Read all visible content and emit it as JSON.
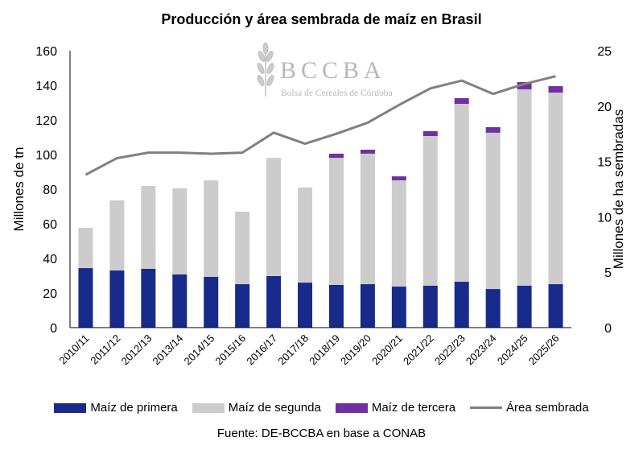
{
  "chart_data": {
    "type": "bar",
    "stacked": true,
    "title": "Producción y área sembrada de maíz en Brasil",
    "ylabel": "Millones de tn",
    "y2label": "Millones de ha sembradas",
    "ylim": [
      0,
      160
    ],
    "yticks": [
      0,
      20,
      40,
      60,
      80,
      100,
      120,
      140,
      160
    ],
    "y2lim": [
      0,
      25
    ],
    "y2ticks": [
      0,
      5,
      10,
      15,
      20,
      25
    ],
    "grid": false,
    "legend_position": "bottom",
    "categories": [
      "2010/11",
      "2011/12",
      "2012/13",
      "2013/14",
      "2014/15",
      "2015/16",
      "2016/17",
      "2017/18",
      "2018/19",
      "2019/20",
      "2020/21",
      "2021/22",
      "2022/23",
      "2023/24",
      "2024/25",
      "2025/26"
    ],
    "series": [
      {
        "name": "Maíz de primera",
        "type": "bar",
        "axis": "left",
        "color": "#182a8a",
        "values": [
          34.4,
          33.0,
          34.0,
          30.7,
          29.3,
          25.1,
          29.8,
          26.0,
          24.7,
          25.1,
          23.7,
          24.2,
          26.5,
          22.3,
          24.2,
          25.1
        ]
      },
      {
        "name": "Maíz de segunda",
        "type": "bar",
        "axis": "left",
        "color": "#cccccc",
        "values": [
          23.3,
          40.5,
          47.9,
          49.8,
          55.8,
          41.9,
          68.3,
          55.0,
          73.4,
          75.4,
          61.4,
          86.5,
          102.8,
          90.3,
          113.5,
          110.7
        ]
      },
      {
        "name": "Maíz de tercera",
        "type": "bar",
        "axis": "left",
        "color": "#7030a0",
        "values": [
          0,
          0,
          0,
          0,
          0,
          0,
          0,
          0,
          2.4,
          2.3,
          2.3,
          2.8,
          3.3,
          3.2,
          4.2,
          3.7
        ]
      },
      {
        "name": "Área sembrada",
        "type": "line",
        "axis": "right",
        "color": "#808080",
        "values": [
          13.8,
          15.3,
          15.8,
          15.8,
          15.7,
          15.8,
          17.6,
          16.6,
          17.5,
          18.5,
          20.1,
          21.6,
          22.3,
          21.1,
          22.0,
          22.7
        ]
      }
    ],
    "source": "Fuente: DE-BCCBA en base a CONAB"
  },
  "logo": {
    "name": "BCCBA",
    "subtitle": "Bolsa de Cereales de Córdoba"
  }
}
